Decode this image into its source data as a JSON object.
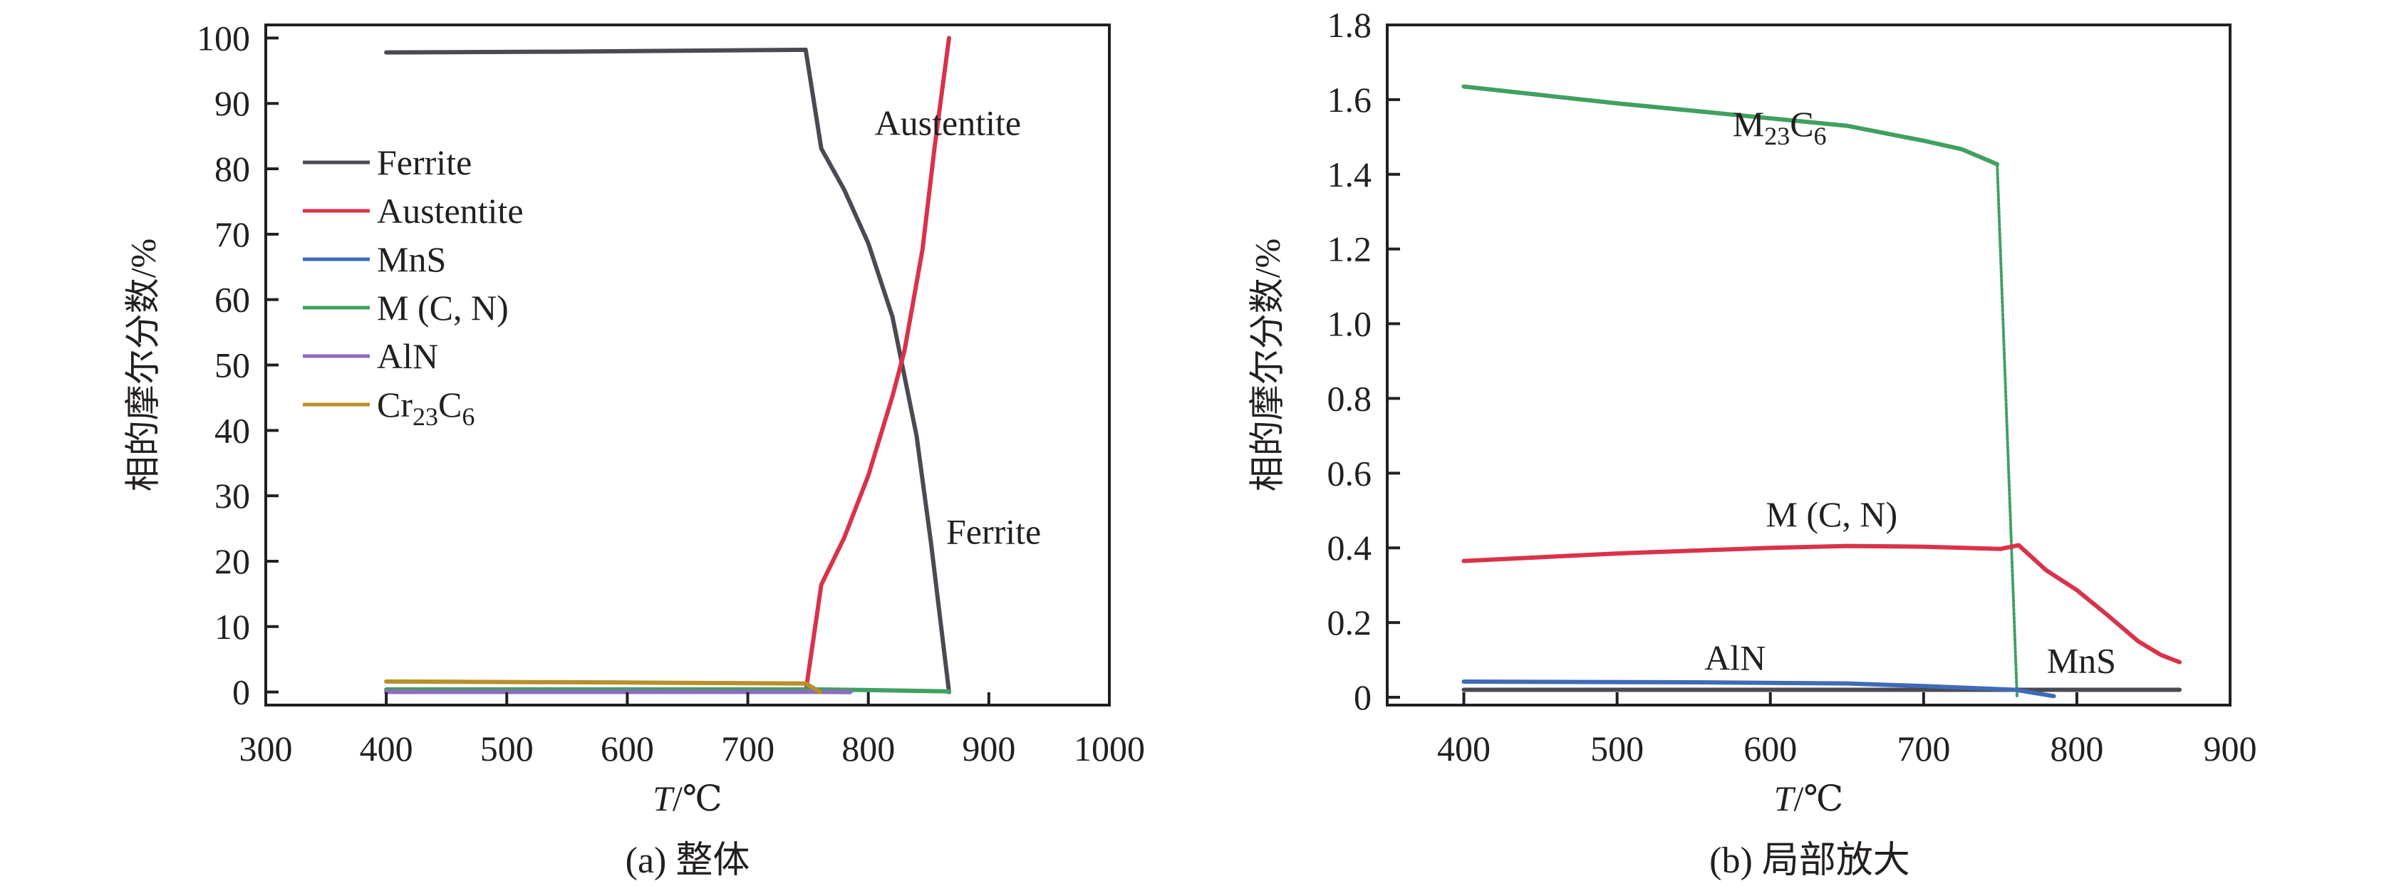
{
  "chart_data": [
    {
      "type": "line",
      "caption": "(a) 整体",
      "xlabel_italic": "T",
      "xlabel_rest": "/℃",
      "ylabel": "相的摩尔分数/%",
      "xlim": [
        300,
        1000
      ],
      "ylim": [
        -2,
        102
      ],
      "xticks": [
        300,
        400,
        500,
        600,
        700,
        800,
        900,
        1000
      ],
      "yticks": [
        0,
        10,
        20,
        30,
        40,
        50,
        60,
        70,
        80,
        90,
        100
      ],
      "grid": false,
      "legend_position": "top-left",
      "series": [
        {
          "name": "Ferrite",
          "color": "#4a4a52",
          "x": [
            400,
            540,
            748,
            761,
            780,
            800,
            820,
            840,
            852,
            867
          ],
          "y": [
            97.8,
            97.9,
            98.2,
            83.1,
            76.8,
            68.6,
            57.4,
            39.2,
            22.8,
            0
          ]
        },
        {
          "name": "Austentite",
          "color": "#d9324a",
          "x": [
            748,
            761,
            780,
            800,
            820,
            830,
            845,
            855,
            867
          ],
          "y": [
            0,
            16.4,
            23.6,
            33.1,
            45.2,
            52.2,
            67.7,
            83.3,
            100
          ]
        },
        {
          "name": "MnS",
          "color": "#3e6bb8",
          "x": [
            400,
            760,
            785
          ],
          "y": [
            0.02,
            0.02,
            0
          ]
        },
        {
          "name": "M (C, N)",
          "color": "#3fa060",
          "x": [
            400,
            760,
            800,
            867
          ],
          "y": [
            0.4,
            0.4,
            0.3,
            0.1
          ]
        },
        {
          "name": "AlN",
          "color": "#8e6bbf",
          "x": [
            400,
            760,
            785
          ],
          "y": [
            0.04,
            0.02,
            0
          ]
        },
        {
          "name": "Cr23C6",
          "color": "#b8902a",
          "x": [
            400,
            600,
            748,
            760
          ],
          "y": [
            1.6,
            1.45,
            1.3,
            0
          ]
        }
      ],
      "annotations": [
        {
          "text": "Austentite",
          "x": 866,
          "y": 87
        },
        {
          "text": "Ferrite",
          "x": 904,
          "y": 24.5
        }
      ]
    },
    {
      "type": "line",
      "caption": "(b) 局部放大",
      "xlabel_italic": "T",
      "xlabel_rest": "/℃",
      "ylabel": "相的摩尔分数/%",
      "xlim": [
        350,
        900
      ],
      "ylim": [
        -0.021,
        1.8
      ],
      "xticks": [
        400,
        500,
        600,
        700,
        800,
        900
      ],
      "yticks": [
        "0",
        "0.2",
        "0.4",
        "0.6",
        "0.8",
        "1.0",
        "1.2",
        "1.4",
        "1.6",
        "1.8"
      ],
      "grid": false,
      "series": [
        {
          "color": "#3fa060",
          "x": [
            400,
            500,
            600,
            650,
            700,
            725,
            748
          ],
          "y": [
            1.635,
            1.59,
            1.55,
            1.53,
            1.49,
            1.467,
            1.427
          ]
        },
        {
          "color": "#3fa060",
          "style": "dotted",
          "x": [
            748,
            761
          ],
          "y": [
            1.427,
            0
          ]
        },
        {
          "color": "#d9324a",
          "x": [
            400,
            500,
            600,
            650,
            700,
            750,
            762,
            780,
            800,
            820,
            840,
            855,
            867
          ],
          "y": [
            0.365,
            0.385,
            0.4,
            0.405,
            0.403,
            0.397,
            0.407,
            0.34,
            0.287,
            0.22,
            0.15,
            0.113,
            0.094
          ]
        },
        {
          "color": "#4a4a52",
          "x": [
            400,
            867
          ],
          "y": [
            0.02,
            0.02
          ]
        },
        {
          "color": "#3e6bb8",
          "x": [
            400,
            550,
            650,
            700,
            760,
            785
          ],
          "y": [
            0.042,
            0.04,
            0.037,
            0.03,
            0.02,
            0.003
          ]
        }
      ],
      "annotations": [
        {
          "text": "M23C6",
          "x": 606,
          "y": 1.535
        },
        {
          "text": "M (C, N)",
          "x": 640,
          "y": 0.49
        },
        {
          "text": "AlN",
          "x": 577,
          "y": 0.106
        },
        {
          "text": "MnS",
          "x": 803,
          "y": 0.098
        }
      ]
    }
  ]
}
